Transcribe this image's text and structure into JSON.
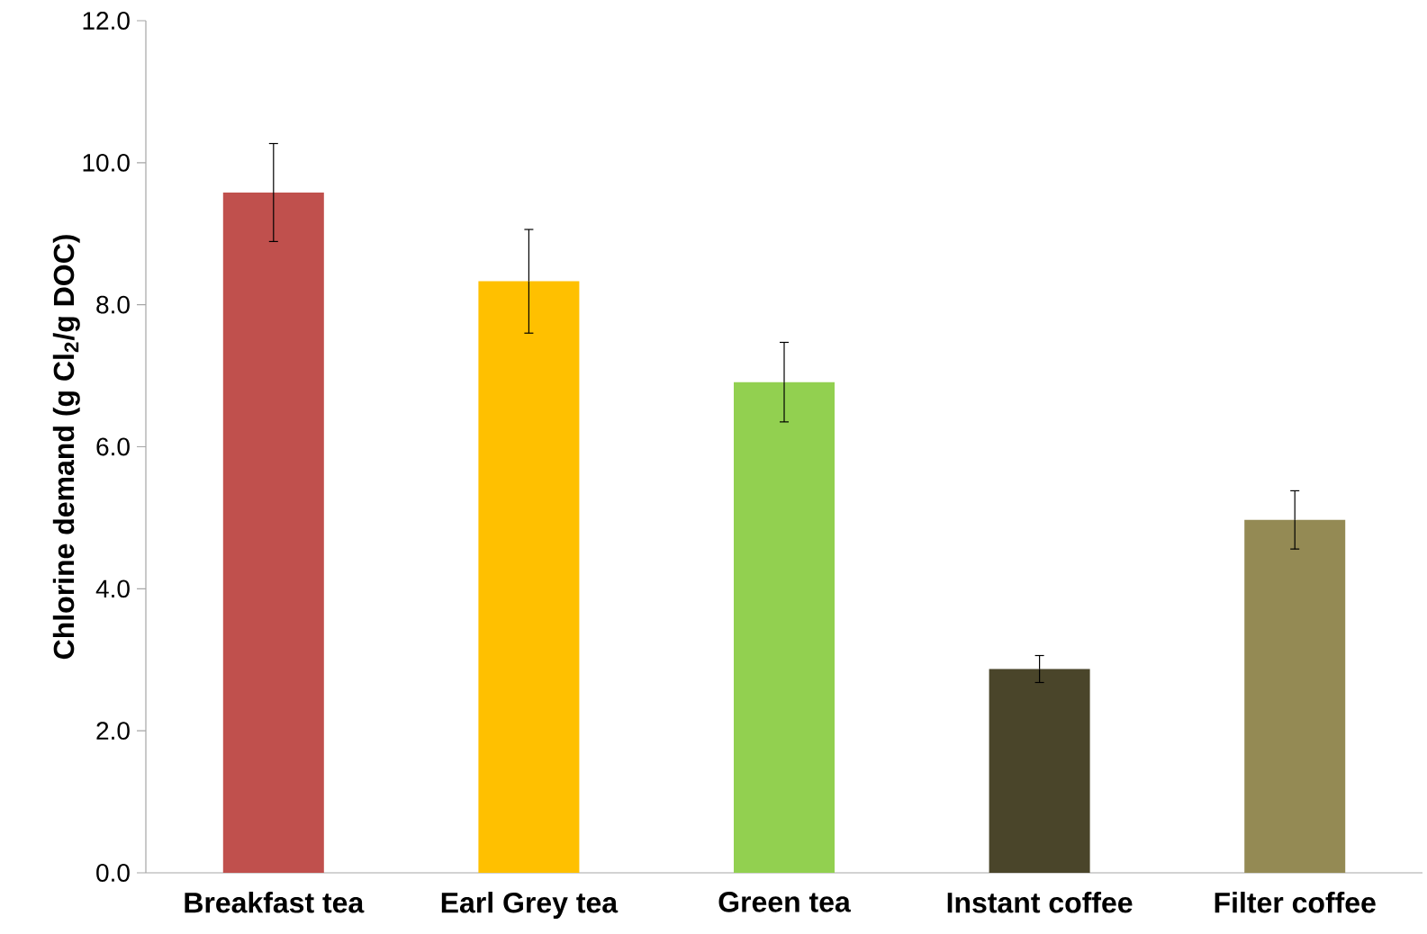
{
  "chart_data": {
    "type": "bar",
    "ylabel": "Chlorine demand (g Cl$_{2}$/g DOC)",
    "categories": [
      "Breakfast tea",
      "Earl Grey tea",
      "Green tea",
      "Instant coffee",
      "Filter coffee"
    ],
    "values": [
      9.58,
      8.33,
      6.91,
      2.87,
      4.97
    ],
    "errors": [
      0.69,
      0.73,
      0.56,
      0.19,
      0.41
    ],
    "colors": [
      "#c0504d",
      "#ffc000",
      "#92d050",
      "#4a452a",
      "#948a54"
    ],
    "ylim": [
      0,
      12
    ],
    "yticks": [
      {
        "value": 0,
        "label": "0.0"
      },
      {
        "value": 2,
        "label": "2.0"
      },
      {
        "value": 4,
        "label": "4.0"
      },
      {
        "value": 6,
        "label": "6.0"
      },
      {
        "value": 8,
        "label": "8.0"
      },
      {
        "value": 10,
        "label": "10.0"
      },
      {
        "value": 12,
        "label": "12.0"
      }
    ]
  }
}
